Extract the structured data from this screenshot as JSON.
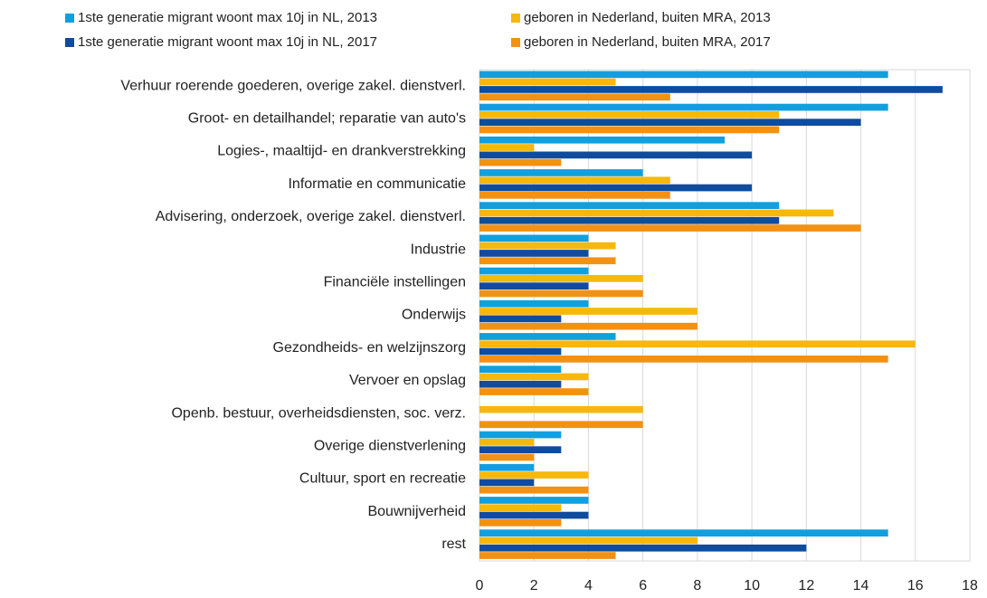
{
  "chart_data": {
    "type": "barh",
    "categories": [
      "Verhuur roerende goederen, overige zakel. dienstverl.",
      "Groot- en detailhandel; reparatie van auto's",
      "Logies-, maaltijd- en drankverstrekking",
      "Informatie en communicatie",
      "Advisering, onderzoek, overige zakel. dienstverl.",
      "Industrie",
      "Financiële instellingen",
      "Onderwijs",
      "Gezondheids- en welzijnszorg",
      "Vervoer en opslag",
      "Openb. bestuur, overheidsdiensten, soc. verz.",
      "Overige dienstverlening",
      "Cultuur, sport en recreatie",
      "Bouwnijverheid",
      "rest"
    ],
    "series": [
      {
        "name": "1ste generatie migrant woont max 10j in NL, 2013",
        "color": "#129fde",
        "values": [
          15,
          15,
          9,
          6,
          11,
          4,
          4,
          4,
          5,
          3,
          0,
          3,
          2,
          4,
          15
        ]
      },
      {
        "name": "geboren in Nederland, buiten MRA, 2013",
        "color": "#f6b80c",
        "values": [
          5,
          11,
          2,
          7,
          13,
          5,
          6,
          8,
          16,
          4,
          6,
          2,
          4,
          3,
          8
        ]
      },
      {
        "name": "1ste generatie migrant woont max 10j in NL, 2017",
        "color": "#0f4c9e",
        "values": [
          17,
          14,
          10,
          10,
          11,
          4,
          4,
          3,
          3,
          3,
          0,
          3,
          2,
          4,
          12
        ]
      },
      {
        "name": "geboren in Nederland, buiten MRA, 2017",
        "color": "#f39113",
        "values": [
          7,
          11,
          3,
          7,
          14,
          5,
          6,
          8,
          15,
          4,
          6,
          2,
          4,
          3,
          5
        ]
      }
    ],
    "xlim": [
      0,
      18
    ],
    "xticks": [
      0,
      2,
      4,
      6,
      8,
      10,
      12,
      14,
      16,
      18
    ],
    "grid": true,
    "legend": "top"
  }
}
